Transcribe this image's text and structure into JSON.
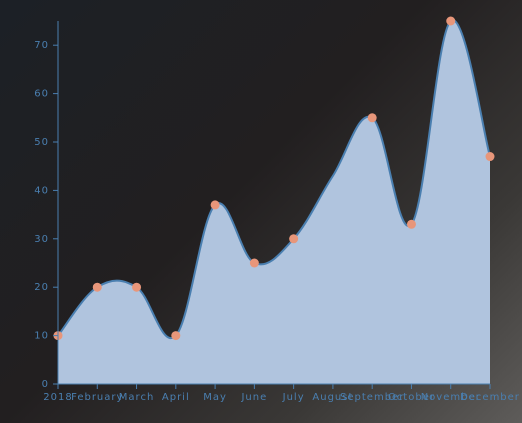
{
  "chart_data": {
    "type": "area",
    "categories": [
      "2018",
      "February",
      "March",
      "April",
      "May",
      "June",
      "July",
      "August",
      "September",
      "October",
      "November",
      "December"
    ],
    "values": [
      10,
      20,
      20,
      10,
      37,
      25,
      30,
      43,
      55,
      33,
      75,
      47
    ],
    "fill": "#b0c4de",
    "line_color": "#4a7fb0",
    "marker_color": "#e8967a",
    "ylim": [
      0,
      75
    ],
    "yticks": [
      0,
      10,
      20,
      30,
      40,
      50,
      60,
      70
    ],
    "grid": false
  }
}
